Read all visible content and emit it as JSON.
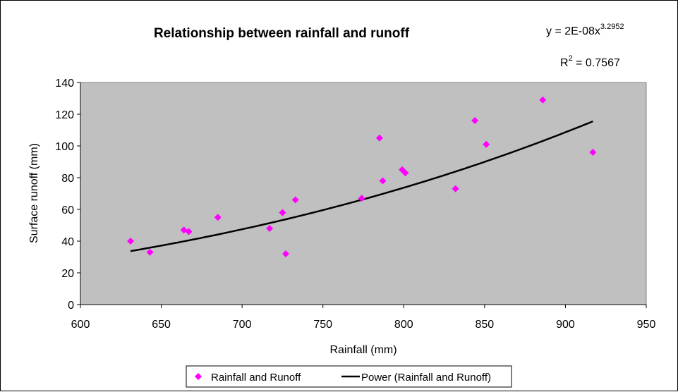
{
  "chart_data": {
    "type": "scatter",
    "title": "Relationship between rainfall and runoff",
    "xlabel": "Rainfall (mm)",
    "ylabel": "Surface runoff (mm)",
    "xlim": [
      600,
      950
    ],
    "ylim": [
      0,
      140
    ],
    "x_ticks": [
      600,
      650,
      700,
      750,
      800,
      850,
      900,
      950
    ],
    "y_ticks": [
      0,
      20,
      40,
      60,
      80,
      100,
      120,
      140
    ],
    "grid": false,
    "plot_background": "#C0C0C0",
    "legend_position": "bottom",
    "series": [
      {
        "name": "Rainfall and Runoff",
        "marker": "diamond",
        "color": "#FF00FF",
        "points": [
          [
            631,
            40
          ],
          [
            643,
            33
          ],
          [
            664,
            47
          ],
          [
            667,
            46
          ],
          [
            685,
            55
          ],
          [
            717,
            48
          ],
          [
            725,
            58
          ],
          [
            727,
            32
          ],
          [
            733,
            66
          ],
          [
            774,
            67
          ],
          [
            785,
            105
          ],
          [
            787,
            78
          ],
          [
            799,
            85
          ],
          [
            801,
            83
          ],
          [
            832,
            73
          ],
          [
            844,
            116
          ],
          [
            851,
            101
          ],
          [
            886,
            129
          ],
          [
            917,
            96
          ]
        ]
      }
    ],
    "trendline": {
      "name": "Power (Rainfall and Runoff)",
      "type": "power",
      "color": "#000000",
      "coefficient": 2e-08,
      "exponent": 3.2952,
      "x_range": [
        631,
        917
      ],
      "equation_label": {
        "prefix": "y = 2E-08x",
        "exponent": "3.2952"
      },
      "r2_label": {
        "prefix": "R",
        "sup": "2",
        "suffix": " = 0.7567"
      }
    }
  }
}
